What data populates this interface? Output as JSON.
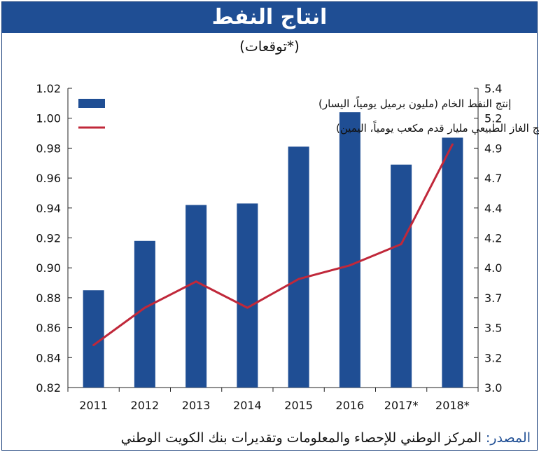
{
  "title": "انتاج النفط",
  "subtitle": "(*توقعات)",
  "source": {
    "label": "المصدر:",
    "text": "المركز الوطني للإحصاء والمعلومات وتقديرات بنك الكويت الوطني"
  },
  "colors": {
    "bars": "#1f4e94",
    "line": "#c0283a",
    "title_bg": "#1f4e94"
  },
  "chart_data": {
    "type": "bar",
    "categories": [
      "2011",
      "2012",
      "2013",
      "2014",
      "2015",
      "2016",
      "2017*",
      "2018*"
    ],
    "series": [
      {
        "name": "إنتج النفط الخام (مليون برميل يومياً، اليسار)",
        "type": "bar",
        "axis": "left",
        "values": [
          0.885,
          0.918,
          0.942,
          0.943,
          0.981,
          1.004,
          0.969,
          0.987
        ]
      },
      {
        "name": "إنتج الغاز الطبيعي مليار قدم مكعب يومياً، اليمين)",
        "type": "line",
        "axis": "right",
        "values": [
          3.34,
          3.64,
          3.85,
          3.64,
          3.87,
          3.98,
          4.15,
          4.95
        ]
      }
    ],
    "left_axis": {
      "ylim": [
        0.82,
        1.02
      ],
      "ticks": [
        "0.82",
        "0.84",
        "0.86",
        "0.88",
        "0.90",
        "0.92",
        "0.94",
        "0.96",
        "0.98",
        "1.00",
        "1.02"
      ]
    },
    "right_axis": {
      "ylim": [
        3.0,
        5.4
      ],
      "ticks": [
        "3.0",
        "3.2",
        "3.5",
        "3.7",
        "4.0",
        "4.2",
        "4.4",
        "4.7",
        "4.9",
        "5.2",
        "5.4"
      ]
    },
    "grid": false,
    "legend_position": "top-left"
  }
}
